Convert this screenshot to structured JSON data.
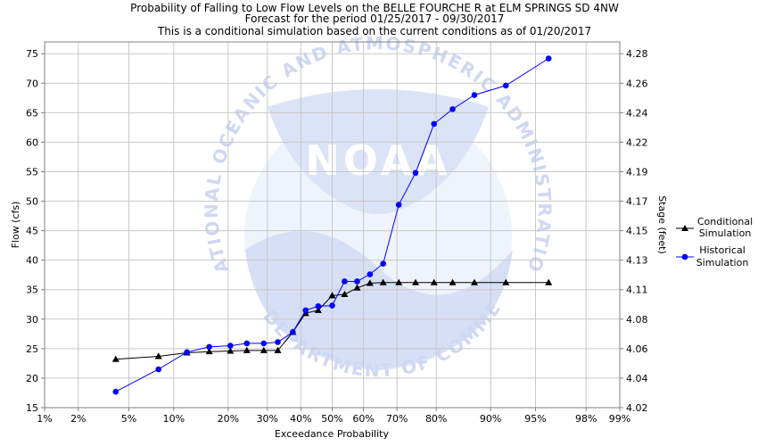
{
  "chart_data": {
    "type": "line",
    "title": "Probability of Falling to Low Flow Levels on the BELLE FOURCHE R at ELM SPRINGS SD 4NW",
    "subtitle": [
      "Forecast for the period 01/25/2017 - 09/30/2017",
      "This is a conditional simulation based on the current conditions as of 01/20/2017"
    ],
    "xlabel": "Exceedance Probability",
    "ylabel": "Flow (cfs)",
    "y2label": "Stage (feet)",
    "x_scale": "normal-probability",
    "x_ticks": [
      {
        "p": 0.01,
        "label": "1%"
      },
      {
        "p": 0.02,
        "label": "2%"
      },
      {
        "p": 0.05,
        "label": "5%"
      },
      {
        "p": 0.1,
        "label": "10%"
      },
      {
        "p": 0.2,
        "label": "20%"
      },
      {
        "p": 0.3,
        "label": "30%"
      },
      {
        "p": 0.4,
        "label": "40%"
      },
      {
        "p": 0.5,
        "label": "50%"
      },
      {
        "p": 0.6,
        "label": "60%"
      },
      {
        "p": 0.7,
        "label": "70%"
      },
      {
        "p": 0.8,
        "label": "80%"
      },
      {
        "p": 0.9,
        "label": "90%"
      },
      {
        "p": 0.95,
        "label": "95%"
      },
      {
        "p": 0.98,
        "label": "98%"
      },
      {
        "p": 0.99,
        "label": "99%"
      }
    ],
    "ylim": [
      15,
      77
    ],
    "y_ticks": [
      15,
      20,
      25,
      30,
      35,
      40,
      45,
      50,
      55,
      60,
      65,
      70,
      75
    ],
    "y2_ticks": [
      {
        "flow": 15,
        "label": "4.02"
      },
      {
        "flow": 20,
        "label": "4.04"
      },
      {
        "flow": 25,
        "label": "4.06"
      },
      {
        "flow": 30,
        "label": "4.08"
      },
      {
        "flow": 35,
        "label": "4.11"
      },
      {
        "flow": 40,
        "label": "4.13"
      },
      {
        "flow": 45,
        "label": "4.15"
      },
      {
        "flow": 50,
        "label": "4.17"
      },
      {
        "flow": 55,
        "label": "4.19"
      },
      {
        "flow": 60,
        "label": "4.22"
      },
      {
        "flow": 65,
        "label": "4.24"
      },
      {
        "flow": 70,
        "label": "4.26"
      },
      {
        "flow": 75,
        "label": "4.28"
      }
    ],
    "grid": true,
    "legend_position": "right",
    "series": [
      {
        "name": "Conditional Simulation",
        "marker": "triangle",
        "color": "#000000",
        "points": [
          [
            0.04,
            23.2
          ],
          [
            0.08,
            23.7
          ],
          [
            0.12,
            24.3
          ],
          [
            0.16,
            24.5
          ],
          [
            0.205,
            24.6
          ],
          [
            0.245,
            24.7
          ],
          [
            0.29,
            24.7
          ],
          [
            0.33,
            24.7
          ],
          [
            0.375,
            27.8
          ],
          [
            0.415,
            31.0
          ],
          [
            0.455,
            31.5
          ],
          [
            0.5,
            34.0
          ],
          [
            0.54,
            34.2
          ],
          [
            0.58,
            35.3
          ],
          [
            0.62,
            36.1
          ],
          [
            0.66,
            36.2
          ],
          [
            0.705,
            36.2
          ],
          [
            0.75,
            36.2
          ],
          [
            0.795,
            36.2
          ],
          [
            0.835,
            36.2
          ],
          [
            0.875,
            36.2
          ],
          [
            0.92,
            36.2
          ],
          [
            0.96,
            36.2
          ]
        ]
      },
      {
        "name": "Historical Simulation",
        "marker": "circle",
        "color": "#0000ff",
        "points": [
          [
            0.04,
            17.7
          ],
          [
            0.08,
            21.5
          ],
          [
            0.12,
            24.4
          ],
          [
            0.16,
            25.3
          ],
          [
            0.205,
            25.5
          ],
          [
            0.245,
            25.9
          ],
          [
            0.29,
            25.9
          ],
          [
            0.33,
            26.1
          ],
          [
            0.375,
            27.8
          ],
          [
            0.415,
            31.5
          ],
          [
            0.455,
            32.2
          ],
          [
            0.5,
            32.3
          ],
          [
            0.54,
            36.4
          ],
          [
            0.58,
            36.4
          ],
          [
            0.62,
            37.6
          ],
          [
            0.66,
            39.4
          ],
          [
            0.705,
            49.4
          ],
          [
            0.75,
            54.8
          ],
          [
            0.795,
            63.1
          ],
          [
            0.835,
            65.6
          ],
          [
            0.875,
            68.0
          ],
          [
            0.92,
            69.6
          ],
          [
            0.96,
            74.2
          ]
        ]
      }
    ]
  },
  "legend": {
    "conditional": [
      "Conditional",
      "Simulation"
    ],
    "historical": [
      "Historical",
      "Simulation"
    ]
  },
  "watermark": {
    "agency": "NOAA",
    "arc_top": "NATIONAL OCEANIC AND ATMOSPHERIC ADMINISTRATION",
    "arc_bottom": "U.S. DEPARTMENT OF COMMERCE",
    "color": "#c9d4f2"
  }
}
